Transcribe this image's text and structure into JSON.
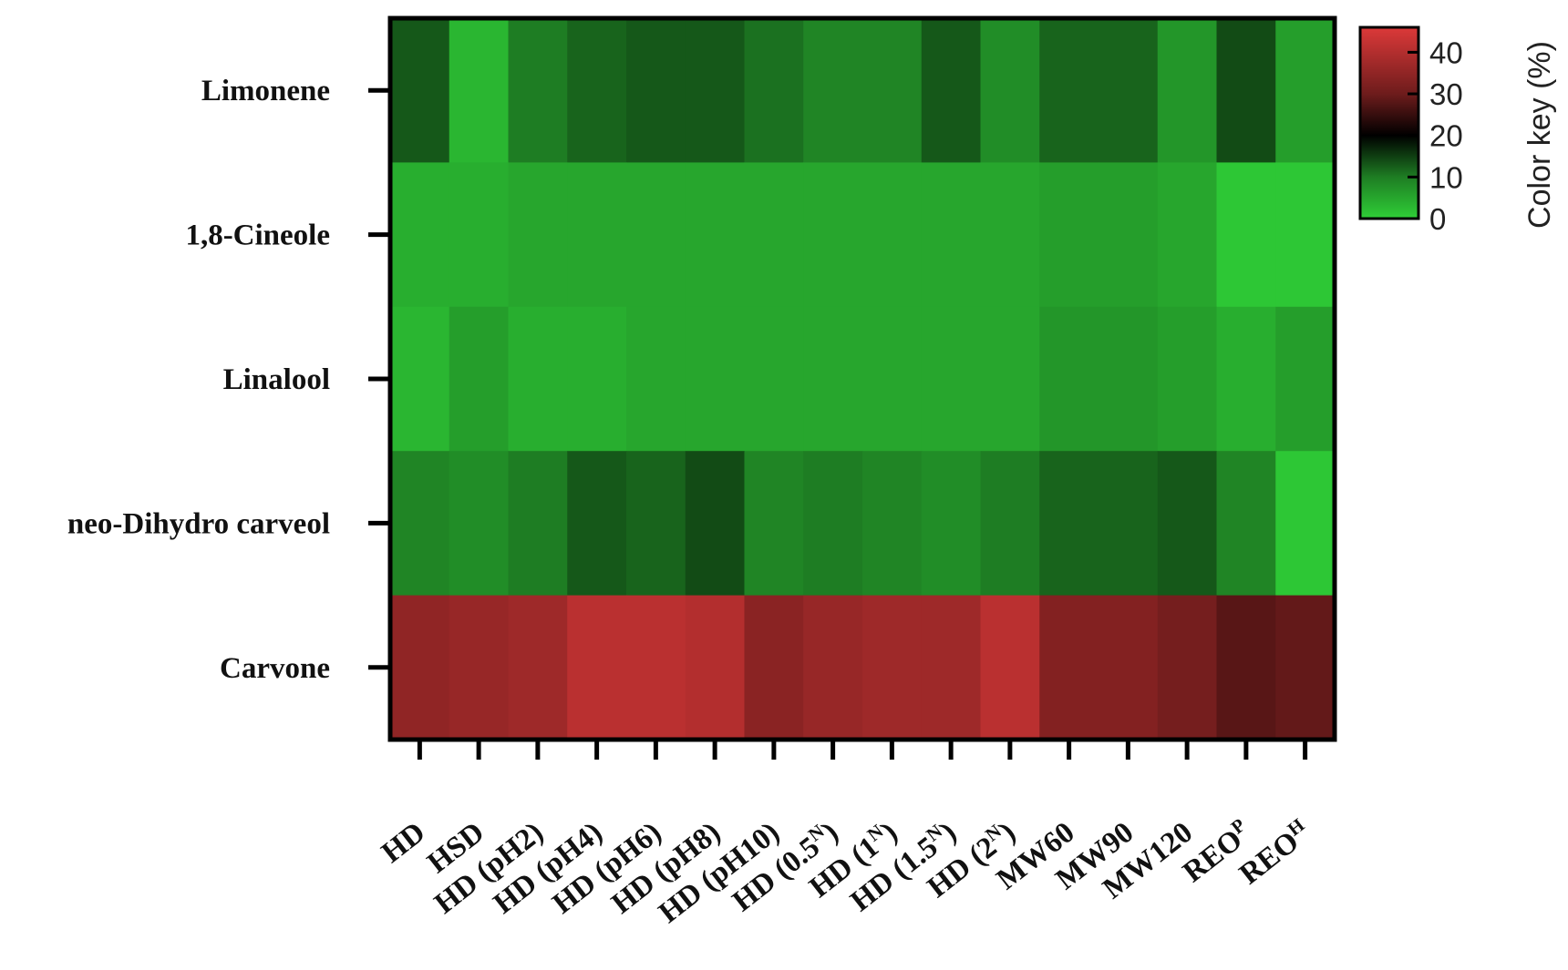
{
  "chart_data": {
    "type": "heatmap",
    "rows": [
      "Limonene",
      "1,8-Cineole",
      "Linalool",
      "neo-Dihydro carveol",
      "Carvone"
    ],
    "columns": [
      {
        "base": "HD",
        "sup": ""
      },
      {
        "base": "HSD",
        "sup": ""
      },
      {
        "base": "HD (pH2)",
        "sup": ""
      },
      {
        "base": "HD (pH4)",
        "sup": ""
      },
      {
        "base": "HD (pH6)",
        "sup": ""
      },
      {
        "base": "HD (pH8)",
        "sup": ""
      },
      {
        "base": "HD (pH10)",
        "sup": ""
      },
      {
        "base": "HD (0.5",
        "sup": "N",
        "tail": ")"
      },
      {
        "base": "HD (1",
        "sup": "N",
        "tail": ")"
      },
      {
        "base": "HD (1.5",
        "sup": "N",
        "tail": ")"
      },
      {
        "base": "HD (2",
        "sup": "N",
        "tail": ")"
      },
      {
        "base": "MW60",
        "sup": ""
      },
      {
        "base": "MW90",
        "sup": ""
      },
      {
        "base": "MW120",
        "sup": ""
      },
      {
        "base": "REO",
        "sup": "P"
      },
      {
        "base": "REO",
        "sup": "H"
      }
    ],
    "values": [
      [
        13,
        3,
        10,
        12,
        13,
        13,
        11,
        9,
        9,
        13,
        8,
        12,
        12,
        7,
        14,
        6
      ],
      [
        4,
        4,
        5,
        5,
        5,
        5,
        5,
        5,
        5,
        5,
        5,
        6,
        6,
        5,
        1,
        1
      ],
      [
        3,
        6,
        4,
        4,
        5,
        5,
        5,
        5,
        5,
        5,
        5,
        7,
        7,
        6,
        4,
        6
      ],
      [
        9,
        8,
        10,
        13,
        12,
        14,
        9,
        10,
        9,
        8,
        10,
        12,
        12,
        13,
        9,
        1
      ],
      [
        35,
        36,
        37,
        41,
        41,
        40,
        34,
        36,
        37,
        37,
        41,
        33,
        33,
        31,
        28,
        29
      ]
    ],
    "colorbar": {
      "title": "Color key (%)",
      "ticks": [
        "0",
        "10",
        "20",
        "30",
        "40"
      ],
      "range": [
        0,
        46
      ],
      "stops": [
        {
          "value": 0,
          "color": "#2fcf37"
        },
        {
          "value": 10,
          "color": "#1e7d23"
        },
        {
          "value": 20,
          "color": "#000000"
        },
        {
          "value": 30,
          "color": "#6e1c1c"
        },
        {
          "value": 46,
          "color": "#dc3939"
        }
      ]
    }
  }
}
